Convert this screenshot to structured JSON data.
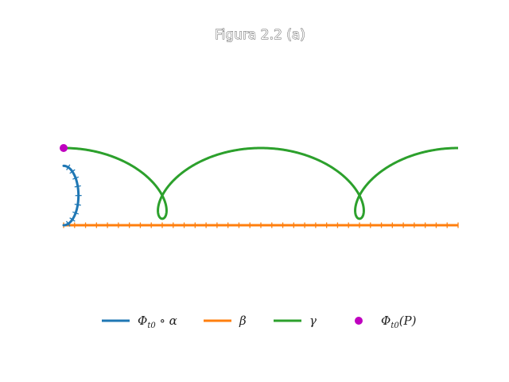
{
  "chart_data": {
    "type": "line",
    "title": "Figura 2.2 (a)",
    "xlim": [
      0,
      6.2832
    ],
    "ylim": [
      -2.2,
      2.2
    ],
    "grid": false,
    "axes_visible": false,
    "legend_placement": "bottom",
    "series": [
      {
        "name": "Φt0 ∘ α",
        "legend": {
          "base": "Φ",
          "sub": "t0",
          "suffix": " ∘ α"
        },
        "color": "#1f77b4",
        "kind": "half-circle",
        "center": [
          0,
          0.5
        ],
        "radius": 0.5,
        "markers": "ticks"
      },
      {
        "name": "β",
        "legend": {
          "base": "β",
          "sub": "",
          "suffix": ""
        },
        "color": "#ff7f0e",
        "kind": "segment",
        "x": [
          0,
          6.2832
        ],
        "y": [
          0,
          0
        ],
        "markers": "ticks"
      },
      {
        "name": "γ",
        "legend": {
          "base": "γ",
          "sub": "",
          "suffix": ""
        },
        "color": "#2ca02c",
        "kind": "trochoid",
        "parameter_range": [
          0,
          6.2832
        ],
        "x_expr": "t + 1.3·sin(t)",
        "y_expr": "1 + 1.3·cos(t)"
      },
      {
        "name": "Φt0(P)",
        "legend": {
          "base": "Φ",
          "sub": "t0",
          "suffix": "(P)"
        },
        "color": "#bf00bf",
        "kind": "point",
        "x": [
          0
        ],
        "y": [
          1.3
        ]
      }
    ]
  }
}
